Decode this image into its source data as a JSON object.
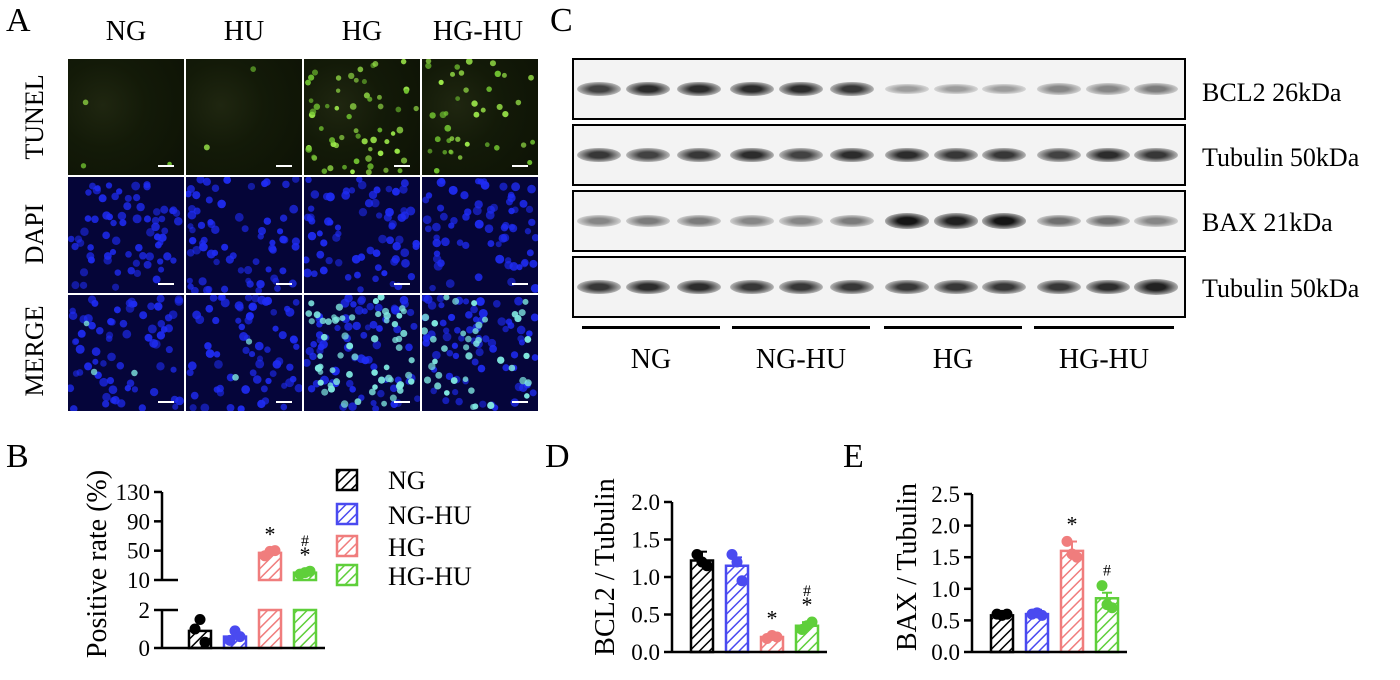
{
  "panels": {
    "A": "A",
    "B": "B",
    "C": "C",
    "D": "D",
    "E": "E"
  },
  "panelA": {
    "columns": [
      "NG",
      "HU",
      "HG",
      "HG-HU"
    ],
    "rows": [
      "TUNEL",
      "DAPI",
      "MERGE"
    ]
  },
  "panelC": {
    "blots": [
      {
        "label": "BCL2 26kDa",
        "intensity": [
          0.75,
          0.85,
          0.85,
          0.85,
          0.85,
          0.8,
          0.35,
          0.35,
          0.35,
          0.45,
          0.45,
          0.5
        ]
      },
      {
        "label": "Tubulin 50kDa",
        "intensity": [
          0.8,
          0.75,
          0.8,
          0.85,
          0.75,
          0.85,
          0.85,
          0.8,
          0.8,
          0.75,
          0.85,
          0.8
        ]
      },
      {
        "label": "BAX 21kDa",
        "intensity": [
          0.45,
          0.5,
          0.5,
          0.45,
          0.45,
          0.5,
          0.95,
          0.9,
          0.95,
          0.55,
          0.55,
          0.45
        ]
      },
      {
        "label": "Tubulin 50kDa",
        "intensity": [
          0.8,
          0.85,
          0.85,
          0.8,
          0.8,
          0.8,
          0.8,
          0.8,
          0.8,
          0.8,
          0.85,
          0.9
        ]
      }
    ],
    "groups": [
      "NG",
      "NG-HU",
      "HG",
      "HG-HU"
    ]
  },
  "colors": {
    "NG": "#000000",
    "NG-HU": "#4a4af0",
    "HG": "#f07d7d",
    "HG-HU": "#5fcf3a"
  },
  "chart_data": [
    {
      "type": "bar",
      "panel": "B",
      "ylabel": "Positive rate (%)",
      "categories": [
        "NG",
        "NG-HU",
        "HG",
        "HG-HU"
      ],
      "values": [
        0.9,
        0.6,
        47,
        20
      ],
      "points": [
        [
          1.0,
          1.5,
          0.3
        ],
        [
          0.4,
          0.9,
          0.6
        ],
        [
          43,
          49,
          50
        ],
        [
          18,
          20,
          22
        ]
      ],
      "annotations": [
        "",
        "",
        "*",
        "#\n*"
      ],
      "y_axis_broken": true,
      "lower_ticks": [
        "0",
        "2"
      ],
      "upper_ticks": [
        "10",
        "50",
        "90",
        "130"
      ],
      "legend": [
        "NG",
        "NG-HU",
        "HG",
        "HG-HU"
      ]
    },
    {
      "type": "bar",
      "panel": "D",
      "ylabel": "BCL2 / Tubulin",
      "categories": [
        "NG",
        "NG-HU",
        "HG",
        "HG-HU"
      ],
      "values": [
        1.22,
        1.15,
        0.2,
        0.35
      ],
      "points": [
        [
          1.3,
          1.2,
          1.15
        ],
        [
          1.3,
          1.2,
          0.95
        ],
        [
          0.18,
          0.22,
          0.2
        ],
        [
          0.3,
          0.35,
          0.4
        ]
      ],
      "annotations": [
        "",
        "",
        "*",
        "#\n*"
      ],
      "ylim": [
        0,
        2.0
      ],
      "ticks": [
        "0.0",
        "0.5",
        "1.0",
        "1.5",
        "2.0"
      ]
    },
    {
      "type": "bar",
      "panel": "E",
      "ylabel": "BAX / Tubulin",
      "categories": [
        "NG",
        "NG-HU",
        "HG",
        "HG-HU"
      ],
      "values": [
        0.58,
        0.6,
        1.6,
        0.85
      ],
      "points": [
        [
          0.6,
          0.58,
          0.6
        ],
        [
          0.6,
          0.62,
          0.58
        ],
        [
          1.75,
          1.55,
          1.5
        ],
        [
          1.05,
          0.75,
          0.7
        ]
      ],
      "annotations": [
        "",
        "",
        "*",
        "#"
      ],
      "ylim": [
        0,
        2.5
      ],
      "ticks": [
        "0.0",
        "0.5",
        "1.0",
        "1.5",
        "2.0",
        "2.5"
      ]
    }
  ]
}
